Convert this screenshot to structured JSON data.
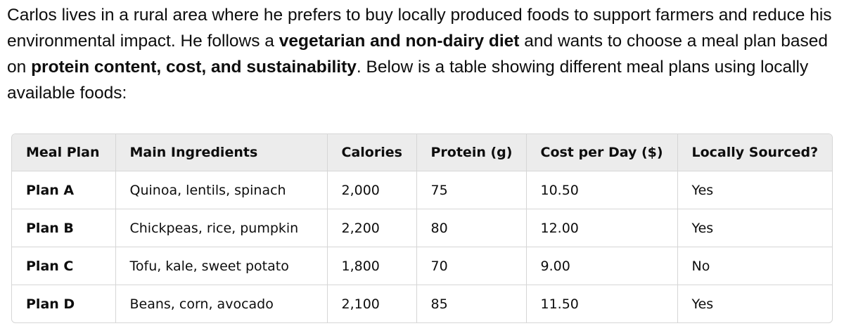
{
  "paragraph": [
    {
      "text": "Carlos lives in a rural area where he prefers to buy locally produced foods to support farmers and reduce his environmental impact. He follows a ",
      "bold": false
    },
    {
      "text": "vegetarian and non-dairy diet",
      "bold": true
    },
    {
      "text": " and wants to choose a meal plan based on ",
      "bold": false
    },
    {
      "text": "protein content, cost, and sustainability",
      "bold": true
    },
    {
      "text": ". Below is a table showing different meal plans using locally available foods:",
      "bold": false
    }
  ],
  "table": {
    "headers": [
      "Meal Plan",
      "Main Ingredients",
      "Calories",
      "Protein (g)",
      "Cost per Day ($)",
      "Locally Sourced?"
    ],
    "rows": [
      [
        "Plan A",
        "Quinoa, lentils, spinach",
        "2,000",
        "75",
        "10.50",
        "Yes"
      ],
      [
        "Plan B",
        "Chickpeas, rice, pumpkin",
        "2,200",
        "80",
        "12.00",
        "Yes"
      ],
      [
        "Plan C",
        "Tofu, kale, sweet potato",
        "1,800",
        "70",
        "9.00",
        "No"
      ],
      [
        "Plan D",
        "Beans, corn, avocado",
        "2,100",
        "85",
        "11.50",
        "Yes"
      ]
    ]
  }
}
